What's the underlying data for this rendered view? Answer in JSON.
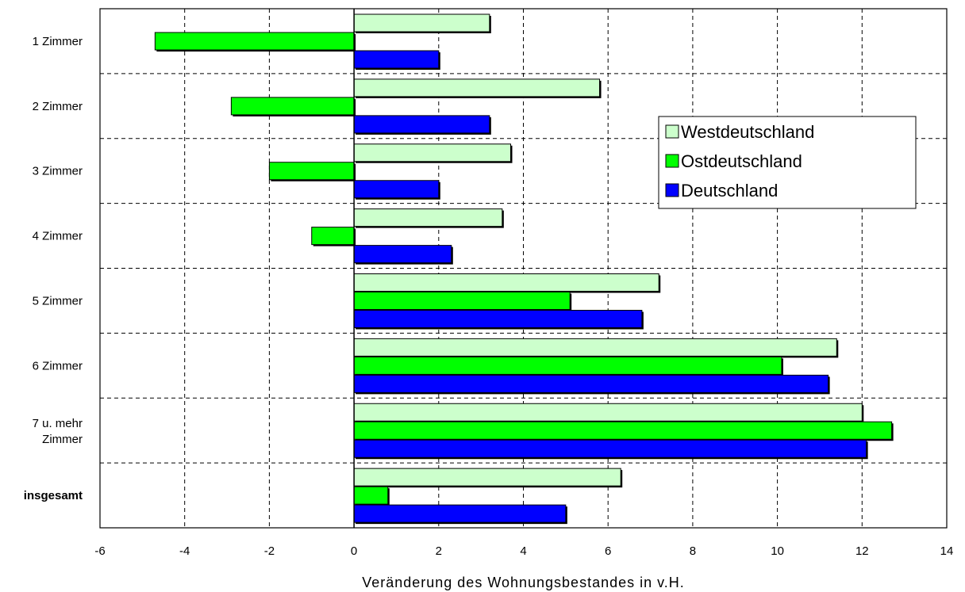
{
  "chart_data": {
    "type": "bar",
    "orientation": "horizontal",
    "categories": [
      "1 Zimmer",
      "2 Zimmer",
      "3 Zimmer",
      "4 Zimmer",
      "5 Zimmer",
      "6 Zimmer",
      "7 u. mehr Zimmer",
      "insgesamt"
    ],
    "bold_categories": [
      "insgesamt"
    ],
    "series": [
      {
        "name": "Westdeutschland",
        "color": "#ccffcc",
        "values": [
          3.2,
          5.8,
          3.7,
          3.5,
          7.2,
          11.4,
          12.0,
          6.3
        ]
      },
      {
        "name": "Ostdeutschland",
        "color": "#00ff00",
        "values": [
          -4.7,
          -2.9,
          -2.0,
          -1.0,
          5.1,
          10.1,
          12.7,
          0.8
        ]
      },
      {
        "name": "Deutschland",
        "color": "#0000ff",
        "values": [
          2.0,
          3.2,
          2.0,
          2.3,
          6.8,
          11.2,
          12.1,
          5.0
        ]
      }
    ],
    "xlabel": "Veränderung des Wohnungsbestandes in v.H.",
    "ylabel": "",
    "xlim": [
      -6,
      14
    ],
    "xticks": [
      -6,
      -4,
      -2,
      0,
      2,
      4,
      6,
      8,
      10,
      12,
      14
    ],
    "grid": true,
    "grid_style": "dashed",
    "legend_position": "right"
  }
}
